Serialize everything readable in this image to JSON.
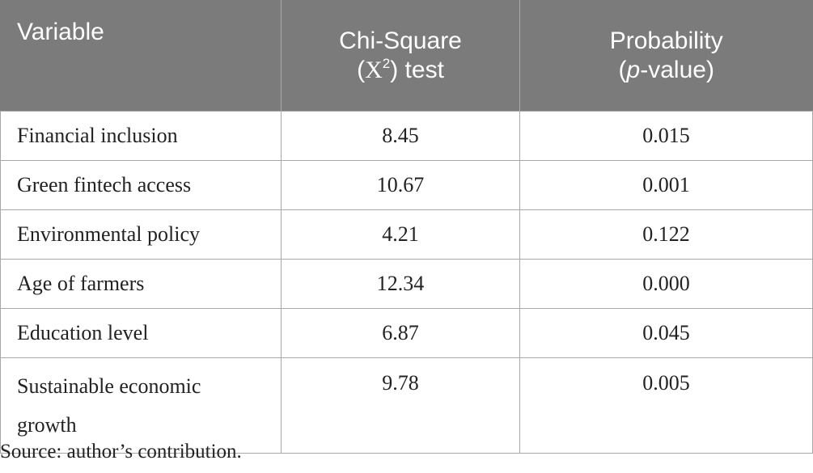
{
  "table": {
    "headers": {
      "variable": "Variable",
      "chi_square_line1": "Chi-Square",
      "chi_square_open": "(",
      "chi_square_symbol": "X",
      "chi_square_sup": "2",
      "chi_square_close": ") test",
      "probability_line1": "Probability",
      "probability_open": "(",
      "probability_p": "p",
      "probability_close": "-value)"
    },
    "rows": [
      {
        "variable": "Financial inclusion",
        "chi_square": "8.45",
        "p_value": "0.015"
      },
      {
        "variable": "Green fintech access",
        "chi_square": "10.67",
        "p_value": "0.001"
      },
      {
        "variable": "Environmental policy",
        "chi_square": "4.21",
        "p_value": "0.122"
      },
      {
        "variable": "Age of farmers",
        "chi_square": "12.34",
        "p_value": "0.000"
      },
      {
        "variable": "Education level",
        "chi_square": "6.87",
        "p_value": "0.045"
      },
      {
        "variable": "Sustainable economic growth",
        "chi_square": "9.78",
        "p_value": "0.005"
      }
    ]
  },
  "footnote": "Source: author’s contribution.",
  "colors": {
    "header_background": "#7b7b7b",
    "header_text": "#ffffff",
    "border": "#a8a8a8",
    "body_text": "#222222"
  }
}
